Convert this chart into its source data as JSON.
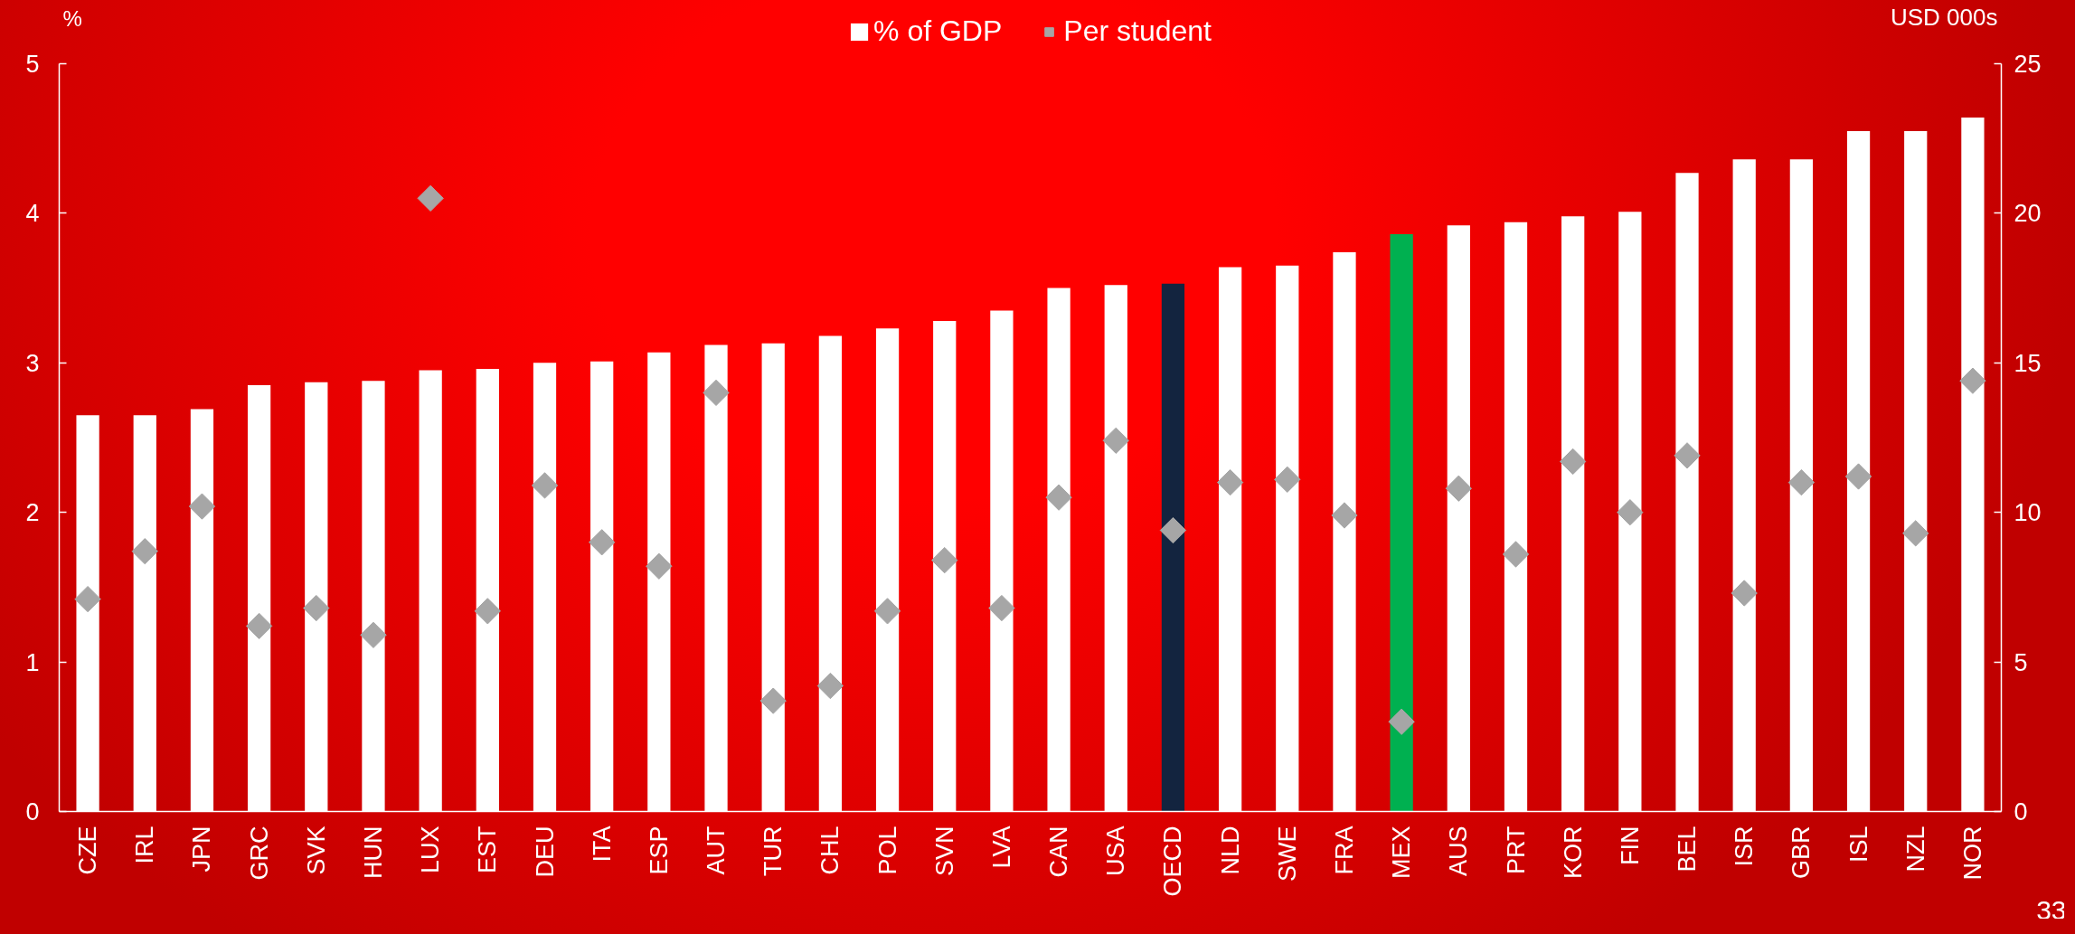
{
  "chart_data": {
    "type": "bar",
    "categories": [
      "CZE",
      "IRL",
      "JPN",
      "GRC",
      "SVK",
      "HUN",
      "LUX",
      "EST",
      "DEU",
      "ITA",
      "ESP",
      "AUT",
      "TUR",
      "CHL",
      "POL",
      "SVN",
      "LVA",
      "CAN",
      "USA",
      "OECD",
      "NLD",
      "SWE",
      "FRA",
      "MEX",
      "AUS",
      "PRT",
      "KOR",
      "FIN",
      "BEL",
      "ISR",
      "GBR",
      "ISL",
      "NZL",
      "NOR"
    ],
    "series": [
      {
        "name": "% of GDP",
        "colors": [
          "#ffffff",
          "#ffffff",
          "#ffffff",
          "#ffffff",
          "#ffffff",
          "#ffffff",
          "#ffffff",
          "#ffffff",
          "#ffffff",
          "#ffffff",
          "#ffffff",
          "#ffffff",
          "#ffffff",
          "#ffffff",
          "#ffffff",
          "#ffffff",
          "#ffffff",
          "#ffffff",
          "#ffffff",
          "#13243f",
          "#ffffff",
          "#ffffff",
          "#ffffff",
          "#00b050",
          "#ffffff",
          "#ffffff",
          "#ffffff",
          "#ffffff",
          "#ffffff",
          "#ffffff",
          "#ffffff",
          "#ffffff",
          "#ffffff",
          "#ffffff"
        ],
        "values": [
          2.65,
          2.65,
          2.69,
          2.85,
          2.87,
          2.88,
          2.95,
          2.96,
          3.0,
          3.01,
          3.07,
          3.12,
          3.13,
          3.18,
          3.23,
          3.28,
          3.35,
          3.5,
          3.52,
          3.53,
          3.64,
          3.65,
          3.74,
          3.86,
          3.92,
          3.94,
          3.98,
          4.01,
          4.27,
          4.36,
          4.36,
          4.55,
          4.55,
          4.64
        ]
      },
      {
        "name": "Per student",
        "type": "scatter",
        "axis": "y2",
        "marker": "diamond",
        "color": "#a6a6a6",
        "values": [
          7.1,
          8.7,
          10.2,
          6.2,
          6.8,
          5.9,
          20.5,
          6.7,
          10.9,
          9.0,
          8.2,
          14.0,
          3.7,
          4.2,
          6.7,
          8.4,
          6.8,
          10.5,
          12.4,
          9.4,
          11.0,
          11.1,
          9.9,
          3.0,
          10.8,
          8.6,
          11.7,
          10.0,
          11.9,
          7.3,
          11.0,
          11.2,
          9.3,
          14.4
        ]
      }
    ],
    "ylabel": "%",
    "y2label": "USD 000s",
    "ylim": [
      0,
      5
    ],
    "yticks": [
      0,
      1,
      2,
      3,
      4,
      5
    ],
    "y2lim": [
      0,
      25
    ],
    "y2ticks": [
      0,
      5,
      10,
      15,
      20,
      25
    ],
    "legend": "top",
    "annotations": [
      "33"
    ]
  }
}
